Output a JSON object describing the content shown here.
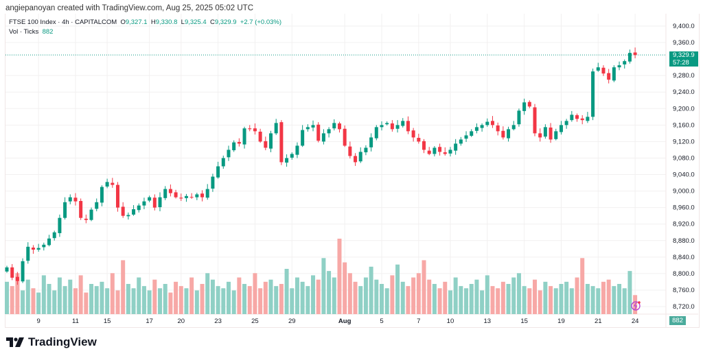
{
  "credit": "angiepanoyan created with TradingView.com, Aug 25, 2025 05:02 UTC",
  "legend": {
    "symbol": "FTSE 100 Index · 4h · CAPITALCOM",
    "o_label": "O",
    "o": "9,327.1",
    "h_label": "H",
    "h": "9,330.8",
    "l_label": "L",
    "l": "9,325.4",
    "c_label": "C",
    "c": "9,329.9",
    "change": "+2.7 (+0.03%)",
    "vol_label": "Vol · Ticks",
    "vol": "882"
  },
  "price_tag": {
    "price": "9,329.9",
    "countdown": "57:28"
  },
  "volume_tag": "882",
  "logo_text": "TradingView",
  "colors": {
    "up": "#089981",
    "down": "#f23645",
    "vol_up": "#8fd0c5",
    "vol_down": "#f7a8a6"
  },
  "chart_data": {
    "type": "candlestick",
    "y_ticks": [
      "9,400.0",
      "9,360.0",
      "9,280.0",
      "9,240.0",
      "9,200.0",
      "9,160.0",
      "9,120.0",
      "9,080.0",
      "9,040.0",
      "9,000.0",
      "8,960.0",
      "8,920.0",
      "8,880.0",
      "8,840.0",
      "8,800.0",
      "8,760.0",
      "8,720.0"
    ],
    "y_tick_values": [
      9400,
      9360,
      9280,
      9240,
      9200,
      9160,
      9120,
      9080,
      9040,
      9000,
      8960,
      8920,
      8880,
      8840,
      8800,
      8760,
      8720
    ],
    "ylim": [
      8720,
      9400
    ],
    "x_ticks": [
      "9",
      "11",
      "15",
      "17",
      "20",
      "23",
      "25",
      "29",
      "Aug",
      "5",
      "7",
      "10",
      "13",
      "15",
      "19",
      "21",
      "24"
    ],
    "x_tick_index": [
      6,
      13,
      19,
      27,
      33,
      40,
      47,
      54,
      64,
      71,
      78,
      84,
      91,
      98,
      105,
      112,
      119
    ],
    "closes": [
      8815,
      8790,
      8782,
      8830,
      8865,
      8858,
      8862,
      8870,
      8885,
      8900,
      8935,
      8973,
      8985,
      8975,
      8935,
      8930,
      8955,
      8973,
      9010,
      9022,
      9015,
      8960,
      8940,
      8942,
      8956,
      8965,
      8975,
      8985,
      8960,
      8985,
      9005,
      8995,
      8985,
      8982,
      8988,
      8985,
      8992,
      8985,
      9005,
      9035,
      9060,
      9080,
      9100,
      9118,
      9115,
      9152,
      9150,
      9145,
      9120,
      9105,
      9140,
      9165,
      9070,
      9080,
      9090,
      9110,
      9148,
      9155,
      9160,
      9122,
      9140,
      9150,
      9165,
      9150,
      9110,
      9085,
      9070,
      9095,
      9105,
      9130,
      9155,
      9160,
      9165,
      9150,
      9160,
      9170,
      9145,
      9130,
      9120,
      9100,
      9090,
      9105,
      9095,
      9090,
      9100,
      9115,
      9125,
      9135,
      9145,
      9155,
      9160,
      9168,
      9160,
      9145,
      9130,
      9150,
      9160,
      9195,
      9215,
      9205,
      9140,
      9130,
      9155,
      9125,
      9145,
      9160,
      9170,
      9185,
      9175,
      9172,
      9180,
      9290,
      9300,
      9285,
      9270,
      9300,
      9305,
      9315,
      9335,
      9329.9
    ],
    "volumes": [
      1500,
      1300,
      1900,
      1100,
      1600,
      1200,
      1000,
      1800,
      1400,
      1100,
      1700,
      1300,
      1600,
      1200,
      1800,
      1000,
      1400,
      1300,
      1500,
      1200,
      1900,
      1100,
      2500,
      1400,
      1200,
      1700,
      1300,
      1100,
      1600,
      1200,
      1400,
      1000,
      1500,
      1300,
      1200,
      1700,
      1100,
      1400,
      1900,
      1600,
      1300,
      1200,
      1500,
      1100,
      1700,
      1400,
      1300,
      1900,
      1200,
      1500,
      1600,
      1300,
      1400,
      2100,
      1200,
      1700,
      1500,
      1300,
      1800,
      1600,
      2600,
      2000,
      1700,
      3500,
      2400,
      1900,
      1500,
      1300,
      1700,
      2200,
      1600,
      1400,
      1200,
      1800,
      2300,
      1500,
      1300,
      1700,
      1900,
      2500,
      1600,
      1400,
      1200,
      1500,
      1100,
      1700,
      1300,
      1200,
      1400,
      1600,
      1100,
      1800,
      1300,
      1200,
      1500,
      1400,
      1700,
      1900,
      1300,
      1200,
      1600,
      1100,
      1500,
      1300,
      1200,
      1400,
      1500,
      1200,
      1700,
      2600,
      1400,
      1300,
      1200,
      1500,
      1600,
      1300,
      1400,
      1200,
      2000,
      882
    ]
  }
}
